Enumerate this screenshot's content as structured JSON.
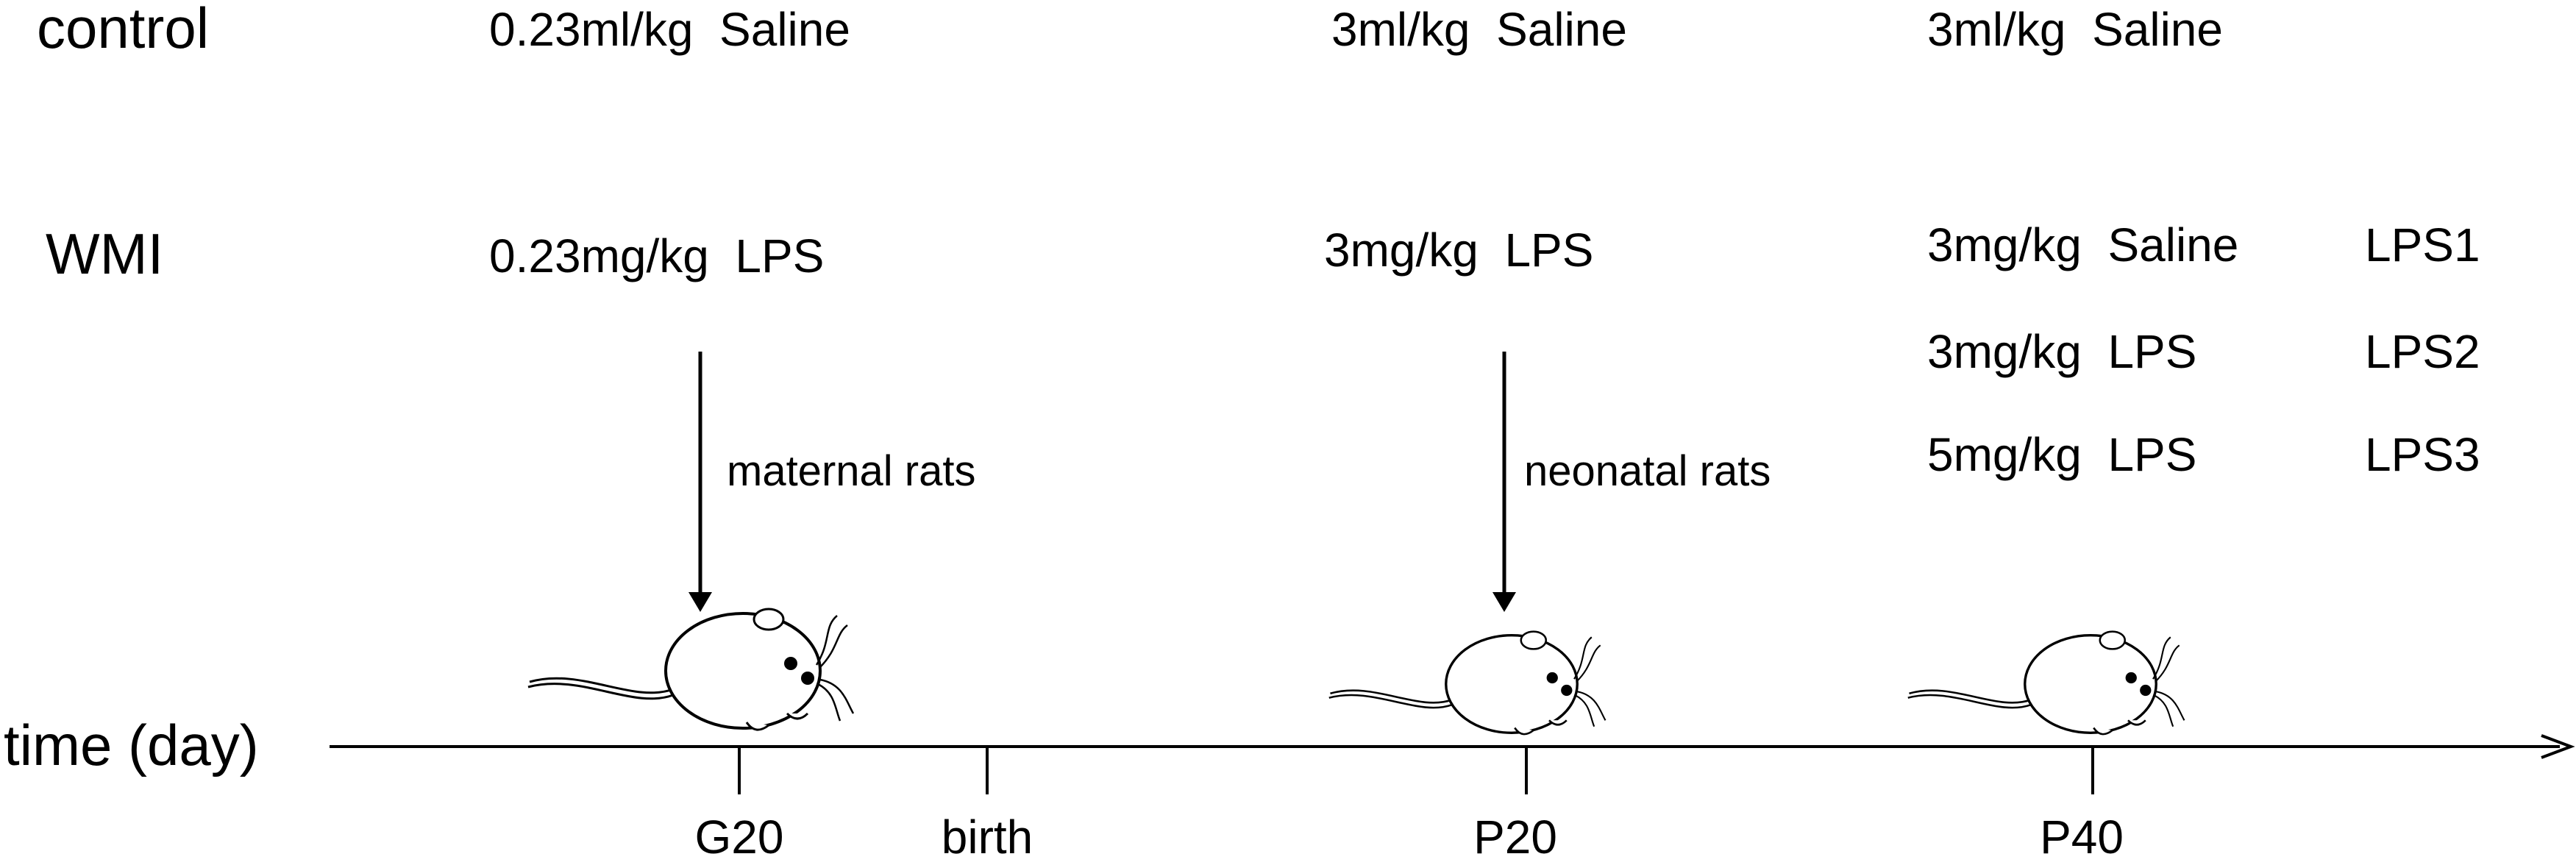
{
  "rows": {
    "control": {
      "label": "control",
      "g20": "0.23ml/kg  Saline",
      "p20": "3ml/kg  Saline",
      "p40": "3ml/kg  Saline"
    },
    "wmi": {
      "label": "WMI",
      "g20": "0.23mg/kg  LPS",
      "p20": "3mg/kg  LPS",
      "p40_groups": [
        {
          "dose": "3mg/kg  Saline",
          "group": "LPS1"
        },
        {
          "dose": "3mg/kg  LPS",
          "group": "LPS2"
        },
        {
          "dose": "5mg/kg  LPS",
          "group": "LPS3"
        }
      ]
    }
  },
  "arrows": {
    "maternal": "maternal rats",
    "neonatal": "neonatal rats"
  },
  "timeline": {
    "axis_label": "time (day)",
    "ticks": [
      "G20",
      "birth",
      "P20",
      "P40"
    ]
  },
  "icons": [
    "rat-icon",
    "arrow-down-icon"
  ]
}
